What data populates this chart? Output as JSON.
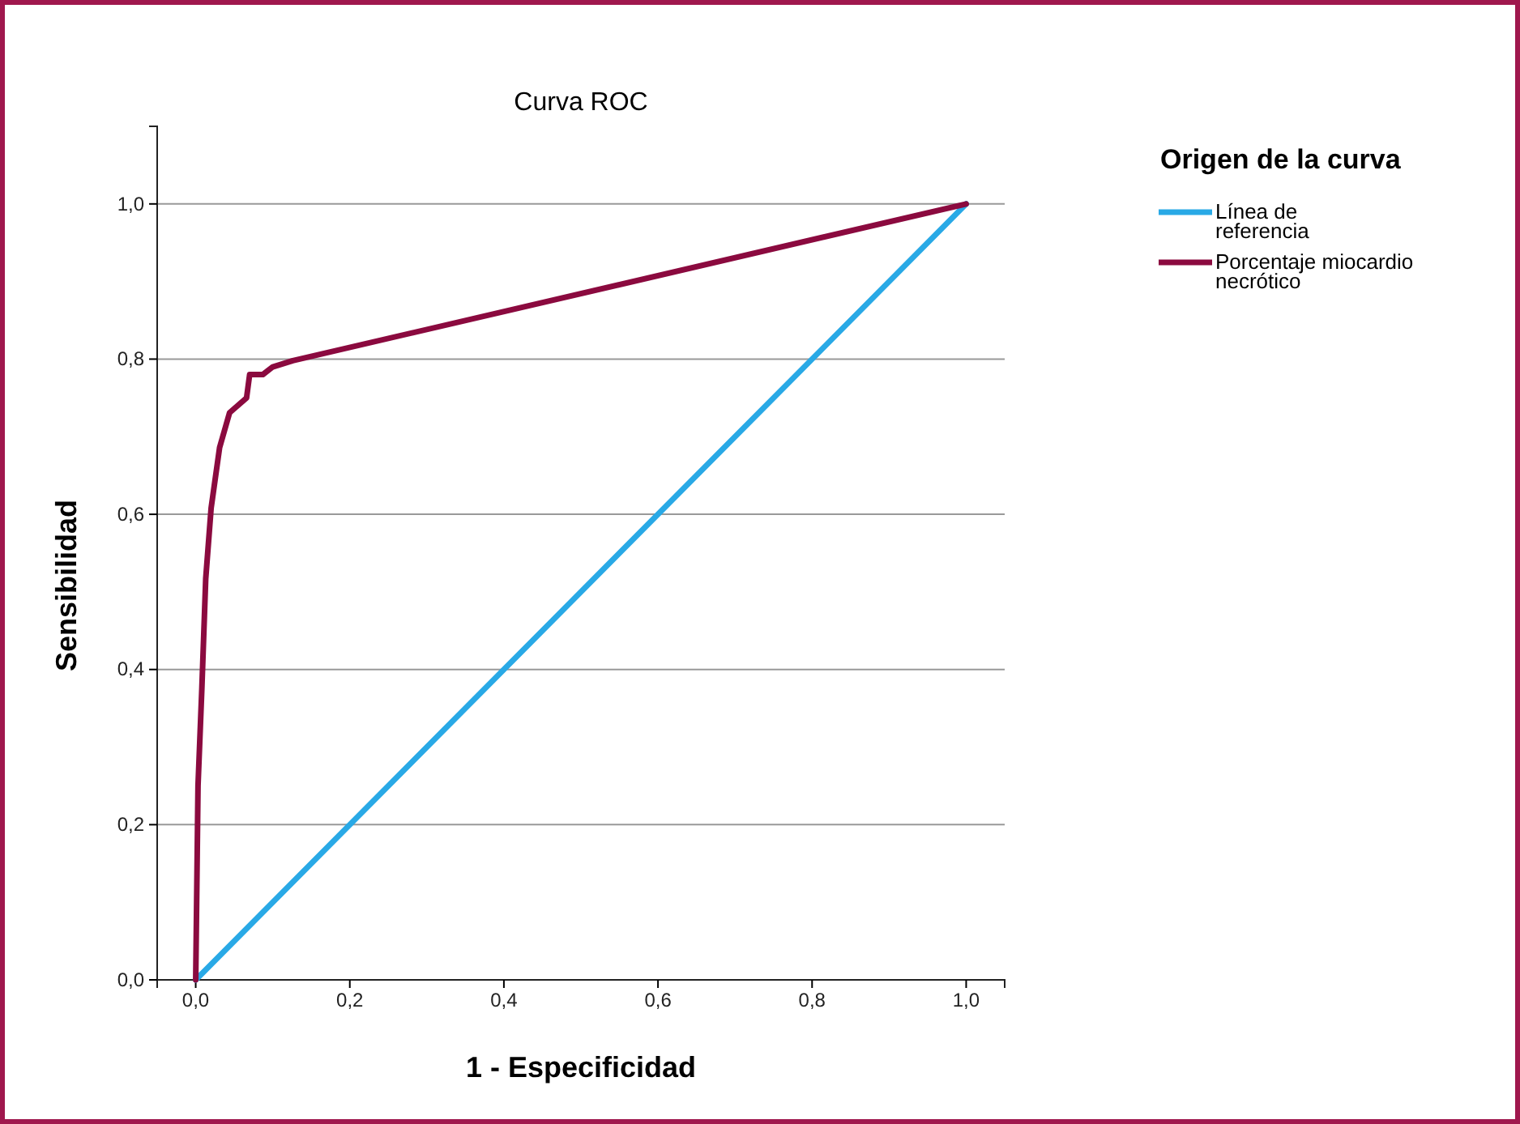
{
  "chart_data": {
    "type": "line",
    "title": "Curva ROC",
    "xlabel": "1 - Especificidad",
    "ylabel": "Sensibilidad",
    "legend_title": "Origen de la curva",
    "xlim": [
      -0.05,
      1.05
    ],
    "ylim": [
      0,
      1.1
    ],
    "xticks": [
      {
        "value": 0,
        "label": "0,0"
      },
      {
        "value": 0.2,
        "label": "0,2"
      },
      {
        "value": 0.4,
        "label": "0,4"
      },
      {
        "value": 0.6,
        "label": "0,6"
      },
      {
        "value": 0.8,
        "label": "0,8"
      },
      {
        "value": 1,
        "label": "1,0"
      }
    ],
    "yticks": [
      {
        "value": 0,
        "label": "0,0"
      },
      {
        "value": 0.2,
        "label": "0,2"
      },
      {
        "value": 0.4,
        "label": "0,4"
      },
      {
        "value": 0.6,
        "label": "0,6"
      },
      {
        "value": 0.8,
        "label": "0,8"
      },
      {
        "value": 1,
        "label": "1,0"
      }
    ],
    "grid": "y",
    "legend": "top right",
    "marker": "none",
    "line_style": "solid",
    "series": [
      {
        "name": "Línea de referencia",
        "color": "#29a9e6",
        "x": [
          0,
          1
        ],
        "values": [
          0,
          1
        ]
      },
      {
        "name": "Porcentaje miocardio necrótico",
        "color": "#8b0a3f",
        "x": [
          0,
          0.003,
          0.008,
          0.013,
          0.02,
          0.031,
          0.044,
          0.066,
          0.07,
          0.087,
          0.1,
          0.126,
          1
        ],
        "values": [
          0,
          0.25,
          0.376,
          0.517,
          0.608,
          0.686,
          0.731,
          0.75,
          0.78,
          0.78,
          0.79,
          0.798,
          1
        ]
      }
    ]
  }
}
